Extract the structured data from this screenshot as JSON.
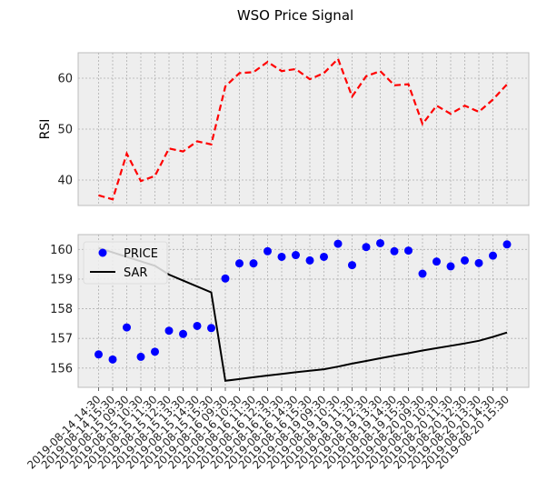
{
  "figure": {
    "title": "WSO Price Signal"
  },
  "chart_data": [
    {
      "type": "line",
      "ylabel": "RSI",
      "ylim": [
        35,
        65
      ],
      "yticks": [
        40,
        50,
        60
      ],
      "grid": true,
      "x": [
        "2019-08-14 14:30",
        "2019-08-14 15:30",
        "2019-08-15 09:30",
        "2019-08-15 10:30",
        "2019-08-15 11:30",
        "2019-08-15 12:30",
        "2019-08-15 13:30",
        "2019-08-15 14:30",
        "2019-08-15 15:30",
        "2019-08-16 09:30",
        "2019-08-16 10:30",
        "2019-08-16 11:30",
        "2019-08-16 12:30",
        "2019-08-16 13:30",
        "2019-08-16 14:30",
        "2019-08-16 15:30",
        "2019-08-19 09:30",
        "2019-08-19 10:30",
        "2019-08-19 11:30",
        "2019-08-19 12:30",
        "2019-08-19 13:30",
        "2019-08-19 14:30",
        "2019-08-19 15:30",
        "2019-08-20 09:30",
        "2019-08-20 10:30",
        "2019-08-20 11:30",
        "2019-08-20 12:30",
        "2019-08-20 13:30",
        "2019-08-20 14:30",
        "2019-08-20 15:30"
      ],
      "series": [
        {
          "values": [
            37.0,
            36.2,
            45.2,
            39.8,
            40.8,
            46.2,
            45.6,
            47.6,
            47.0,
            58.4,
            61.0,
            61.2,
            63.2,
            61.4,
            61.8,
            59.8,
            61.0,
            63.8,
            56.4,
            60.4,
            61.4,
            58.6,
            58.8,
            51.0,
            54.6,
            53.0,
            54.6,
            53.4,
            55.8,
            58.8
          ],
          "color": "#ff0000",
          "style": "dashed"
        }
      ]
    },
    {
      "type": "scatter",
      "ylim": [
        155.35,
        160.5
      ],
      "yticks": [
        156,
        157,
        158,
        159,
        160
      ],
      "grid": true,
      "legend": "top-left",
      "x": [
        "2019-08-14 14:30",
        "2019-08-14 15:30",
        "2019-08-15 09:30",
        "2019-08-15 10:30",
        "2019-08-15 11:30",
        "2019-08-15 12:30",
        "2019-08-15 13:30",
        "2019-08-15 14:30",
        "2019-08-15 15:30",
        "2019-08-16 09:30",
        "2019-08-16 10:30",
        "2019-08-16 11:30",
        "2019-08-16 12:30",
        "2019-08-16 13:30",
        "2019-08-16 14:30",
        "2019-08-16 15:30",
        "2019-08-19 09:30",
        "2019-08-19 10:30",
        "2019-08-19 11:30",
        "2019-08-19 12:30",
        "2019-08-19 13:30",
        "2019-08-19 14:30",
        "2019-08-19 15:30",
        "2019-08-20 09:30",
        "2019-08-20 10:30",
        "2019-08-20 11:30",
        "2019-08-20 12:30",
        "2019-08-20 13:30",
        "2019-08-20 14:30",
        "2019-08-20 15:30"
      ],
      "series": [
        {
          "name": "PRICE",
          "values": [
            156.46,
            156.29,
            157.37,
            156.38,
            156.55,
            157.26,
            157.15,
            157.42,
            157.35,
            159.02,
            159.53,
            159.53,
            159.94,
            159.75,
            159.81,
            159.63,
            159.75,
            160.19,
            159.47,
            160.08,
            160.21,
            159.94,
            159.96,
            159.18,
            159.59,
            159.43,
            159.63,
            159.54,
            159.79,
            160.17
          ],
          "color": "#0000ff",
          "marker": "circle"
        },
        {
          "name": "SAR",
          "values": [
            160.05,
            159.9,
            159.75,
            159.6,
            159.45,
            159.15,
            158.95,
            158.75,
            158.55,
            155.57,
            155.63,
            155.69,
            155.75,
            155.8,
            155.86,
            155.91,
            155.96,
            156.05,
            156.15,
            156.24,
            156.33,
            156.42,
            156.5,
            156.59,
            156.67,
            156.75,
            156.83,
            156.92,
            157.05,
            157.2
          ],
          "color": "#000000",
          "style": "solid"
        }
      ]
    }
  ]
}
